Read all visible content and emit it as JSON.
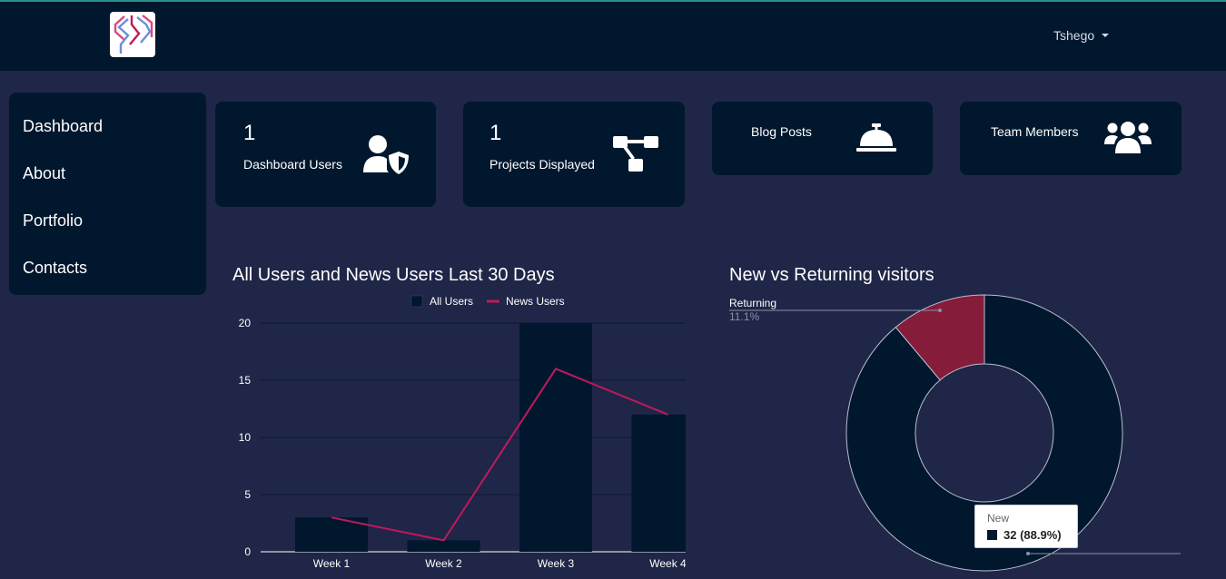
{
  "header": {
    "user_name": "Tshego"
  },
  "sidebar": {
    "items": [
      {
        "label": "Dashboard"
      },
      {
        "label": "About"
      },
      {
        "label": "Portfolio"
      },
      {
        "label": "Contacts"
      }
    ]
  },
  "cards": [
    {
      "count": "1",
      "label": "Dashboard Users",
      "icon": "user-shield-icon"
    },
    {
      "count": "1",
      "label": "Projects Displayed",
      "icon": "project-diagram-icon"
    },
    {
      "count": "",
      "label": "Blog Posts",
      "icon": "concierge-bell-icon"
    },
    {
      "count": "",
      "label": "Team Members",
      "icon": "users-icon"
    }
  ],
  "colors": {
    "navy": "#00172e",
    "background": "#1f2647",
    "crimson": "#c2185b",
    "maroon": "#851c3a"
  },
  "chart_data": [
    {
      "type": "bar",
      "title": "All Users and News Users Last 30 Days",
      "categories": [
        "Week 1",
        "Week 2",
        "Week 3",
        "Week 4"
      ],
      "series": [
        {
          "name": "All Users",
          "type": "bar",
          "values": [
            3,
            1,
            20,
            12
          ]
        },
        {
          "name": "News Users",
          "type": "line",
          "values": [
            3,
            1,
            16,
            12
          ]
        }
      ],
      "ylim": [
        0,
        20
      ],
      "yticks": [
        "0",
        "5",
        "10",
        "15",
        "20"
      ],
      "grid": true,
      "legend": "top-center"
    },
    {
      "type": "pie",
      "title": "New vs Returning visitors",
      "slices": [
        {
          "name": "New",
          "value": 32,
          "percent": "88.9%"
        },
        {
          "name": "Returning",
          "value": 4,
          "percent": "11.1%"
        }
      ],
      "tooltip": {
        "name": "New",
        "value": "32 (88.9%)"
      }
    }
  ]
}
